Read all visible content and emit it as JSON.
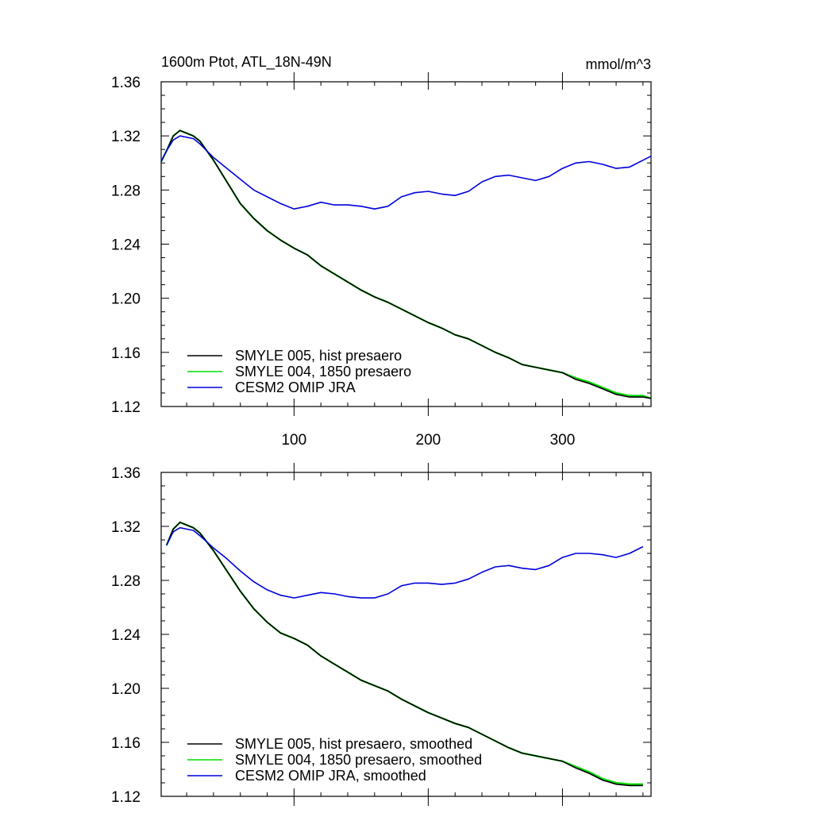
{
  "figure": {
    "title": "1600m Ptot, ATL_18N-49N",
    "units": "mmol/m^3"
  },
  "chart_data": [
    {
      "type": "line",
      "title": "1600m Ptot, ATL_18N-49N",
      "units": "mmol/m^3",
      "xlim": [
        1,
        366
      ],
      "ylim": [
        1.12,
        1.36
      ],
      "yticks": [
        "1.36",
        "1.32",
        "1.28",
        "1.24",
        "1.20",
        "1.16",
        "1.12"
      ],
      "xticks": [
        "100",
        "200",
        "300"
      ],
      "xtick_values": [
        100,
        200,
        300
      ],
      "ytick_values": [
        1.36,
        1.32,
        1.28,
        1.24,
        1.2,
        1.16,
        1.12
      ],
      "legend_position": "bottom-left",
      "series": [
        {
          "name": "SMYLE 005, hist presaero",
          "color": "#000000",
          "x": [
            1,
            5,
            10,
            15,
            20,
            25,
            30,
            40,
            50,
            60,
            70,
            80,
            90,
            100,
            110,
            120,
            130,
            140,
            150,
            160,
            170,
            180,
            190,
            200,
            210,
            220,
            230,
            240,
            250,
            260,
            270,
            280,
            290,
            300,
            310,
            320,
            330,
            340,
            350,
            360,
            366
          ],
          "y": [
            1.301,
            1.309,
            1.32,
            1.324,
            1.322,
            1.32,
            1.316,
            1.302,
            1.286,
            1.27,
            1.259,
            1.25,
            1.243,
            1.237,
            1.232,
            1.224,
            1.218,
            1.212,
            1.206,
            1.201,
            1.197,
            1.192,
            1.187,
            1.182,
            1.178,
            1.173,
            1.17,
            1.165,
            1.16,
            1.156,
            1.151,
            1.149,
            1.147,
            1.145,
            1.14,
            1.137,
            1.133,
            1.129,
            1.127,
            1.127,
            1.126
          ]
        },
        {
          "name": "SMYLE 004, 1850 presaero",
          "color": "#00dd00",
          "x": [
            1,
            5,
            10,
            15,
            20,
            25,
            30,
            40,
            50,
            60,
            70,
            80,
            90,
            100,
            110,
            120,
            130,
            140,
            150,
            160,
            170,
            180,
            190,
            200,
            210,
            220,
            230,
            240,
            250,
            260,
            270,
            280,
            290,
            300,
            310,
            320,
            330,
            340,
            350,
            360,
            366
          ],
          "y": [
            1.301,
            1.309,
            1.32,
            1.324,
            1.322,
            1.32,
            1.316,
            1.302,
            1.286,
            1.27,
            1.259,
            1.25,
            1.243,
            1.237,
            1.232,
            1.224,
            1.218,
            1.212,
            1.206,
            1.201,
            1.197,
            1.192,
            1.187,
            1.182,
            1.178,
            1.173,
            1.17,
            1.165,
            1.16,
            1.156,
            1.151,
            1.149,
            1.147,
            1.145,
            1.141,
            1.138,
            1.134,
            1.13,
            1.128,
            1.128,
            1.126
          ]
        },
        {
          "name": "CESM2 OMIP JRA",
          "color": "#0000dd",
          "x": [
            1,
            5,
            10,
            15,
            20,
            25,
            30,
            40,
            50,
            60,
            70,
            80,
            90,
            100,
            110,
            120,
            130,
            140,
            150,
            160,
            170,
            180,
            190,
            200,
            210,
            220,
            230,
            240,
            250,
            260,
            270,
            280,
            290,
            300,
            310,
            320,
            330,
            340,
            350,
            360,
            366
          ],
          "y": [
            1.301,
            1.309,
            1.317,
            1.32,
            1.319,
            1.318,
            1.314,
            1.304,
            1.296,
            1.288,
            1.28,
            1.275,
            1.27,
            1.266,
            1.268,
            1.271,
            1.269,
            1.269,
            1.268,
            1.266,
            1.268,
            1.275,
            1.278,
            1.279,
            1.277,
            1.276,
            1.279,
            1.286,
            1.29,
            1.291,
            1.289,
            1.287,
            1.29,
            1.296,
            1.3,
            1.301,
            1.299,
            1.296,
            1.297,
            1.302,
            1.305
          ]
        }
      ]
    },
    {
      "type": "line",
      "xlim": [
        1,
        366
      ],
      "ylim": [
        1.12,
        1.36
      ],
      "yticks": [
        "1.36",
        "1.32",
        "1.28",
        "1.24",
        "1.20",
        "1.16",
        "1.12"
      ],
      "ytick_values": [
        1.36,
        1.32,
        1.28,
        1.24,
        1.2,
        1.16,
        1.12
      ],
      "xtick_values": [
        100,
        200,
        300
      ],
      "legend_position": "bottom-left",
      "series": [
        {
          "name": "SMYLE 005, hist presaero, smoothed",
          "color": "#000000",
          "x": [
            5,
            10,
            15,
            20,
            25,
            30,
            40,
            50,
            60,
            70,
            80,
            90,
            100,
            110,
            120,
            130,
            140,
            150,
            160,
            170,
            180,
            190,
            200,
            210,
            220,
            230,
            240,
            250,
            260,
            270,
            280,
            290,
            300,
            310,
            320,
            330,
            340,
            350,
            360
          ],
          "y": [
            1.306,
            1.318,
            1.323,
            1.321,
            1.319,
            1.315,
            1.302,
            1.287,
            1.272,
            1.259,
            1.249,
            1.241,
            1.237,
            1.232,
            1.224,
            1.218,
            1.212,
            1.206,
            1.202,
            1.198,
            1.192,
            1.187,
            1.182,
            1.178,
            1.174,
            1.171,
            1.166,
            1.161,
            1.156,
            1.152,
            1.15,
            1.148,
            1.146,
            1.141,
            1.137,
            1.132,
            1.129,
            1.128,
            1.128
          ]
        },
        {
          "name": "SMYLE 004, 1850 presaero, smoothed",
          "color": "#00dd00",
          "x": [
            5,
            10,
            15,
            20,
            25,
            30,
            40,
            50,
            60,
            70,
            80,
            90,
            100,
            110,
            120,
            130,
            140,
            150,
            160,
            170,
            180,
            190,
            200,
            210,
            220,
            230,
            240,
            250,
            260,
            270,
            280,
            290,
            300,
            310,
            320,
            330,
            340,
            350,
            360
          ],
          "y": [
            1.306,
            1.318,
            1.323,
            1.321,
            1.319,
            1.315,
            1.302,
            1.287,
            1.272,
            1.259,
            1.249,
            1.241,
            1.237,
            1.232,
            1.224,
            1.218,
            1.212,
            1.206,
            1.202,
            1.198,
            1.192,
            1.187,
            1.182,
            1.178,
            1.174,
            1.171,
            1.166,
            1.161,
            1.156,
            1.152,
            1.15,
            1.148,
            1.146,
            1.142,
            1.138,
            1.133,
            1.13,
            1.129,
            1.129
          ]
        },
        {
          "name": "CESM2 OMIP JRA, smoothed",
          "color": "#0000dd",
          "x": [
            5,
            10,
            15,
            20,
            25,
            30,
            40,
            50,
            60,
            70,
            80,
            90,
            100,
            110,
            120,
            130,
            140,
            150,
            160,
            170,
            180,
            190,
            200,
            210,
            220,
            230,
            240,
            250,
            260,
            270,
            280,
            290,
            300,
            310,
            320,
            330,
            340,
            350,
            360
          ],
          "y": [
            1.306,
            1.316,
            1.319,
            1.318,
            1.317,
            1.313,
            1.304,
            1.296,
            1.287,
            1.279,
            1.273,
            1.269,
            1.267,
            1.269,
            1.271,
            1.27,
            1.268,
            1.267,
            1.267,
            1.27,
            1.276,
            1.278,
            1.278,
            1.277,
            1.278,
            1.281,
            1.286,
            1.29,
            1.291,
            1.289,
            1.288,
            1.291,
            1.297,
            1.3,
            1.3,
            1.299,
            1.297,
            1.3,
            1.305
          ]
        }
      ]
    }
  ]
}
